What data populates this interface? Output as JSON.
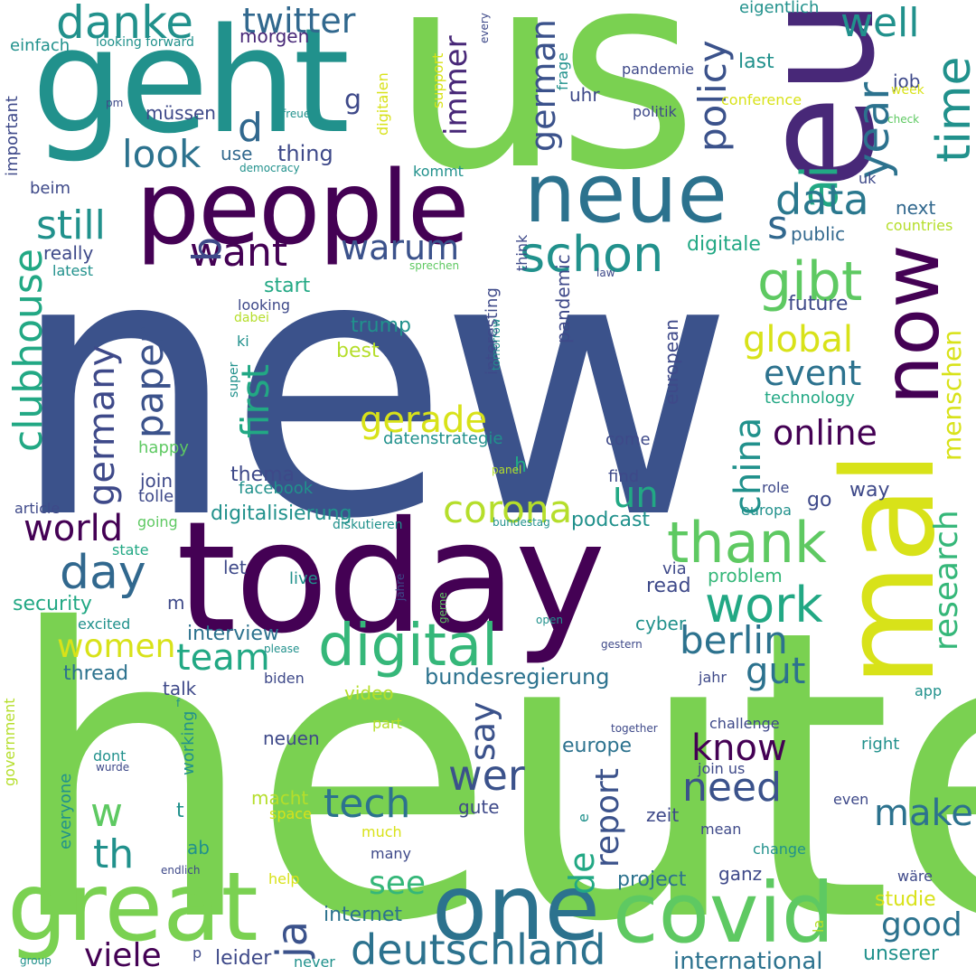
{
  "words": [
    {
      "text": "new",
      "color": "#3b528b"
    },
    {
      "text": "heute",
      "color": "#7ad151"
    },
    {
      "text": "us",
      "color": "#7ad151"
    },
    {
      "text": "today",
      "color": "#440154"
    },
    {
      "text": "geht",
      "color": "#21918c"
    },
    {
      "text": "eu",
      "color": "#482878"
    },
    {
      "text": "people",
      "color": "#440154"
    },
    {
      "text": "mal",
      "color": "#d8e219"
    },
    {
      "text": "neue",
      "color": "#2c728e"
    },
    {
      "text": "one",
      "color": "#2c728e"
    },
    {
      "text": "great",
      "color": "#7ad151"
    },
    {
      "text": "covid",
      "color": "#5ec962"
    },
    {
      "text": "now",
      "color": "#440154"
    },
    {
      "text": "digital",
      "color": "#35b779"
    },
    {
      "text": "danke",
      "color": "#21918c"
    },
    {
      "text": "twitter",
      "color": "#31688e"
    },
    {
      "text": "schon",
      "color": "#21918c"
    },
    {
      "text": "thank",
      "color": "#5ec962"
    },
    {
      "text": "ai",
      "color": "#22a884"
    },
    {
      "text": "time",
      "color": "#21918c"
    },
    {
      "text": "year",
      "color": "#2c728e"
    },
    {
      "text": "gibt",
      "color": "#5ec962"
    },
    {
      "text": "deutschland",
      "color": "#2c728e"
    },
    {
      "text": "day",
      "color": "#31688e"
    },
    {
      "text": "work",
      "color": "#22a884"
    },
    {
      "text": "warum",
      "color": "#3b528b"
    },
    {
      "text": "want",
      "color": "#440154"
    },
    {
      "text": "look",
      "color": "#2c728e"
    },
    {
      "text": "still",
      "color": "#21918c"
    },
    {
      "text": "well",
      "color": "#21918c"
    },
    {
      "text": "immer",
      "color": "#482878"
    },
    {
      "text": "german",
      "color": "#3b528b"
    },
    {
      "text": "policy",
      "color": "#3b528b"
    },
    {
      "text": "data",
      "color": "#2a788e"
    },
    {
      "text": "gerade",
      "color": "#d8e219"
    },
    {
      "text": "event",
      "color": "#2c728e"
    },
    {
      "text": "global",
      "color": "#d8e219"
    },
    {
      "text": "first",
      "color": "#22a884"
    },
    {
      "text": "paper",
      "color": "#3b528b"
    },
    {
      "text": "clubhouse",
      "color": "#22a884"
    },
    {
      "text": "germany",
      "color": "#3e4989"
    },
    {
      "text": "online",
      "color": "#440154"
    },
    {
      "text": "china",
      "color": "#21918c"
    },
    {
      "text": "menschen",
      "color": "#d8e219"
    },
    {
      "text": "research",
      "color": "#35b779"
    },
    {
      "text": "corona",
      "color": "#b5de2b"
    },
    {
      "text": "un",
      "color": "#22a884"
    },
    {
      "text": "world",
      "color": "#440154"
    },
    {
      "text": "team",
      "color": "#22a884"
    },
    {
      "text": "women",
      "color": "#d8e219"
    },
    {
      "text": "berlin",
      "color": "#2c728e"
    },
    {
      "text": "gut",
      "color": "#2c728e"
    },
    {
      "text": "know",
      "color": "#440154"
    },
    {
      "text": "wer",
      "color": "#3b528b"
    },
    {
      "text": "need",
      "color": "#3b528b"
    },
    {
      "text": "tech",
      "color": "#2c728e"
    },
    {
      "text": "make",
      "color": "#2c728e"
    },
    {
      "text": "say",
      "color": "#3b528b"
    },
    {
      "text": "ja",
      "color": "#3b528b"
    },
    {
      "text": "report",
      "color": "#3b528b"
    },
    {
      "text": "see",
      "color": "#35b779"
    },
    {
      "text": "viele",
      "color": "#440154"
    },
    {
      "text": "de",
      "color": "#22a884"
    },
    {
      "text": "good",
      "color": "#2c728e"
    },
    {
      "text": "w",
      "color": "#5ec962"
    },
    {
      "text": "th",
      "color": "#21918c"
    },
    {
      "text": "international",
      "color": "#2c728e"
    },
    {
      "text": "bundesregierung",
      "color": "#2c728e"
    },
    {
      "text": "internet",
      "color": "#2c728e"
    },
    {
      "text": "project",
      "color": "#2c728e"
    },
    {
      "text": "europe",
      "color": "#2c728e"
    },
    {
      "text": "thread",
      "color": "#2c728e"
    },
    {
      "text": "interview",
      "color": "#2c728e"
    },
    {
      "text": "security",
      "color": "#22a884"
    },
    {
      "text": "digitalisierung",
      "color": "#21918c"
    },
    {
      "text": "podcast",
      "color": "#21918c"
    },
    {
      "text": "thema",
      "color": "#3e4989"
    },
    {
      "text": "join",
      "color": "#3e4989"
    },
    {
      "text": "really",
      "color": "#3e4989"
    },
    {
      "text": "beim",
      "color": "#3e4989"
    },
    {
      "text": "thing",
      "color": "#3e4989"
    },
    {
      "text": "morgen",
      "color": "#482878"
    },
    {
      "text": "use",
      "color": "#31688e"
    },
    {
      "text": "d",
      "color": "#31688e"
    },
    {
      "text": "s",
      "color": "#31688e"
    },
    {
      "text": "b",
      "color": "#3e4989"
    },
    {
      "text": "g",
      "color": "#3e4989"
    },
    {
      "text": "public",
      "color": "#31688e"
    },
    {
      "text": "digitale",
      "color": "#22a884"
    },
    {
      "text": "next",
      "color": "#31688e"
    },
    {
      "text": "countries",
      "color": "#b5de2b"
    },
    {
      "text": "future",
      "color": "#3e4989"
    },
    {
      "text": "trump",
      "color": "#21918c"
    },
    {
      "text": "best",
      "color": "#b5de2b"
    },
    {
      "text": "start",
      "color": "#22a884"
    },
    {
      "text": "looking",
      "color": "#3e4989"
    },
    {
      "text": "interesting",
      "color": "#3e4989"
    },
    {
      "text": "think",
      "color": "#3e4989"
    },
    {
      "text": "pandemic",
      "color": "#3e4989"
    },
    {
      "text": "european",
      "color": "#3e4989"
    },
    {
      "text": "technology",
      "color": "#22a884"
    },
    {
      "text": "datenstrategie",
      "color": "#21918c"
    },
    {
      "text": "happy",
      "color": "#5ec962"
    },
    {
      "text": "tolle",
      "color": "#3e4989"
    },
    {
      "text": "facebook",
      "color": "#21918c"
    },
    {
      "text": "h",
      "color": "#22a884"
    },
    {
      "text": "find",
      "color": "#3e4989"
    },
    {
      "text": "come",
      "color": "#3e4989"
    },
    {
      "text": "way",
      "color": "#3e4989"
    },
    {
      "text": "go",
      "color": "#3e4989"
    },
    {
      "text": "role",
      "color": "#3e4989"
    },
    {
      "text": "europa",
      "color": "#21918c"
    },
    {
      "text": "article",
      "color": "#3e4989"
    },
    {
      "text": "going",
      "color": "#5ec962"
    },
    {
      "text": "state",
      "color": "#22a884"
    },
    {
      "text": "let",
      "color": "#3e4989"
    },
    {
      "text": "live",
      "color": "#21918c"
    },
    {
      "text": "problem",
      "color": "#35b779"
    },
    {
      "text": "via",
      "color": "#3e4989"
    },
    {
      "text": "read",
      "color": "#3e4989"
    },
    {
      "text": "m",
      "color": "#3e4989"
    },
    {
      "text": "excited",
      "color": "#21918c"
    },
    {
      "text": "cyber",
      "color": "#21918c"
    },
    {
      "text": "jahr",
      "color": "#3e4989"
    },
    {
      "text": "biden",
      "color": "#3e4989"
    },
    {
      "text": "talk",
      "color": "#3e4989"
    },
    {
      "text": "video",
      "color": "#b5de2b"
    },
    {
      "text": "app",
      "color": "#21918c"
    },
    {
      "text": "government",
      "color": "#b5de2b"
    },
    {
      "text": "everyone",
      "color": "#21918c"
    },
    {
      "text": "dont",
      "color": "#21918c"
    },
    {
      "text": "working",
      "color": "#21918c"
    },
    {
      "text": "neuen",
      "color": "#3e4989"
    },
    {
      "text": "part",
      "color": "#b5de2b"
    },
    {
      "text": "challenge",
      "color": "#3e4989"
    },
    {
      "text": "right",
      "color": "#21918c"
    },
    {
      "text": "join us",
      "color": "#3e4989"
    },
    {
      "text": "macht",
      "color": "#b5de2b"
    },
    {
      "text": "space",
      "color": "#d8e219"
    },
    {
      "text": "t",
      "color": "#21918c"
    },
    {
      "text": "gute",
      "color": "#3e4989"
    },
    {
      "text": "zeit",
      "color": "#3e4989"
    },
    {
      "text": "even",
      "color": "#3e4989"
    },
    {
      "text": "mean",
      "color": "#3e4989"
    },
    {
      "text": "change",
      "color": "#21918c"
    },
    {
      "text": "ab",
      "color": "#21918c"
    },
    {
      "text": "much",
      "color": "#d8e219"
    },
    {
      "text": "many",
      "color": "#3e4989"
    },
    {
      "text": "help",
      "color": "#d8e219"
    },
    {
      "text": "ganz",
      "color": "#3e4989"
    },
    {
      "text": "wäre",
      "color": "#3e4989"
    },
    {
      "text": "studie",
      "color": "#d8e219"
    },
    {
      "text": "unserer",
      "color": "#21918c"
    },
    {
      "text": "leider",
      "color": "#3e4989"
    },
    {
      "text": "never",
      "color": "#21918c"
    },
    {
      "text": "p",
      "color": "#3e4989"
    },
    {
      "text": "la",
      "color": "#b5de2b"
    },
    {
      "text": "e",
      "color": "#21918c"
    },
    {
      "text": "einfach",
      "color": "#21918c"
    },
    {
      "text": "important",
      "color": "#3e4989"
    },
    {
      "text": "looking forward",
      "color": "#21918c"
    },
    {
      "text": "pm",
      "color": "#3e4989"
    },
    {
      "text": "müssen",
      "color": "#3e4989"
    },
    {
      "text": "freue",
      "color": "#21918c"
    },
    {
      "text": "democracy",
      "color": "#21918c"
    },
    {
      "text": "support",
      "color": "#d8e219"
    },
    {
      "text": "digitalen",
      "color": "#d8e219"
    },
    {
      "text": "every",
      "color": "#3e4989"
    },
    {
      "text": "frage",
      "color": "#21918c"
    },
    {
      "text": "pandemie",
      "color": "#3e4989"
    },
    {
      "text": "eigentlich",
      "color": "#21918c"
    },
    {
      "text": "job",
      "color": "#3e4989"
    },
    {
      "text": "last",
      "color": "#21918c"
    },
    {
      "text": "politik",
      "color": "#3e4989"
    },
    {
      "text": "conference",
      "color": "#d8e219"
    },
    {
      "text": "week",
      "color": "#d8e219"
    },
    {
      "text": "check",
      "color": "#5ec962"
    },
    {
      "text": "uhr",
      "color": "#3e4989"
    },
    {
      "text": "kommt",
      "color": "#21918c"
    },
    {
      "text": "uk",
      "color": "#3e4989"
    },
    {
      "text": "latest",
      "color": "#21918c"
    },
    {
      "text": "sprechen",
      "color": "#5ec962"
    },
    {
      "text": "law",
      "color": "#3e4989"
    },
    {
      "text": "tomorrow",
      "color": "#21918c"
    },
    {
      "text": "super",
      "color": "#21918c"
    },
    {
      "text": "dabei",
      "color": "#b5de2b"
    },
    {
      "text": "ki",
      "color": "#21918c"
    },
    {
      "text": "panel",
      "color": "#b5de2b"
    },
    {
      "text": "bundestag",
      "color": "#21918c"
    },
    {
      "text": "diskutieren",
      "color": "#21918c"
    },
    {
      "text": "jahre",
      "color": "#3e4989"
    },
    {
      "text": "gerne",
      "color": "#5ec962"
    },
    {
      "text": "open",
      "color": "#21918c"
    },
    {
      "text": "gestern",
      "color": "#3e4989"
    },
    {
      "text": "please",
      "color": "#21918c"
    },
    {
      "text": "together",
      "color": "#3e4989"
    },
    {
      "text": "f",
      "color": "#21918c"
    },
    {
      "text": "wurde",
      "color": "#3e4989"
    },
    {
      "text": "endlich",
      "color": "#3e4989"
    },
    {
      "text": "group",
      "color": "#21918c"
    }
  ]
}
